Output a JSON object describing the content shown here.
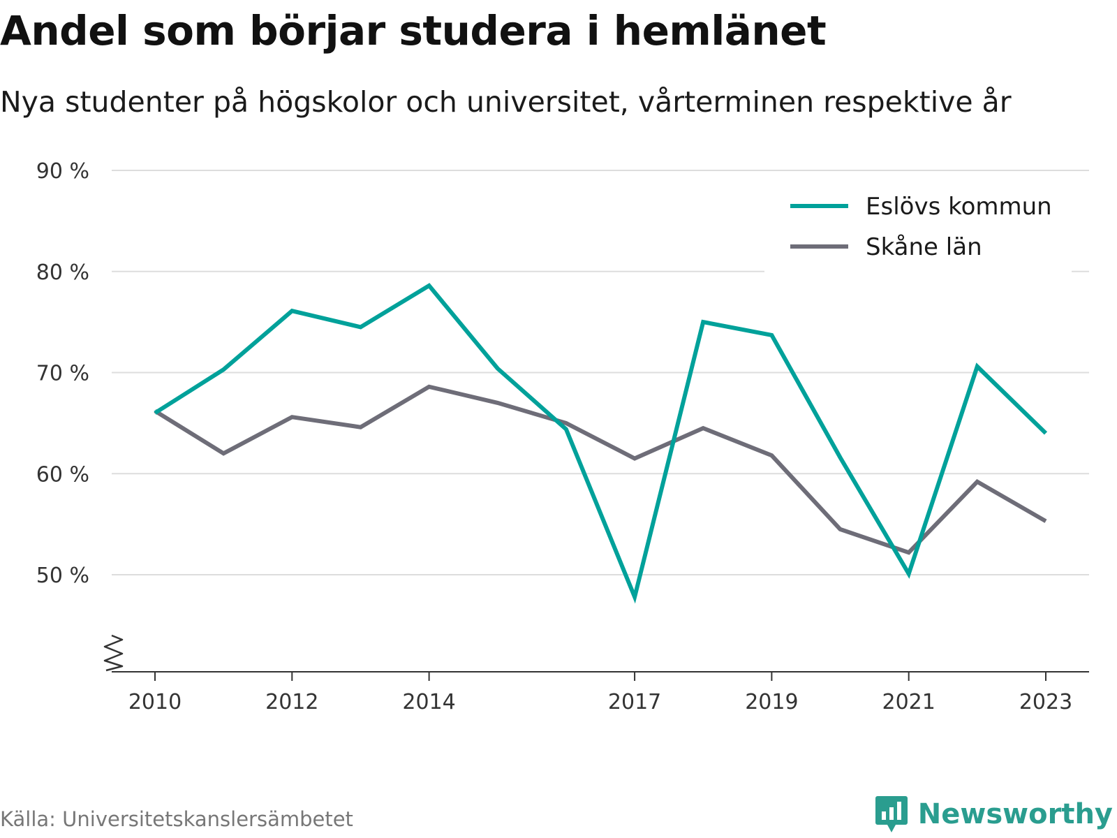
{
  "header": {
    "title": "Andel som börjar studera i hemlänet",
    "subtitle": "Nya studenter på högskolor och universitet, vårterminen respektive år"
  },
  "footer": {
    "source": "Källa: Universitetskanslersämbetet",
    "brand": "Newsworthy",
    "brand_icon": "bar-chart-speech-bubble-icon"
  },
  "colors": {
    "eslov": "#00a19a",
    "skane": "#6e6d78",
    "grid": "#dddddd",
    "axis": "#333333",
    "brand": "#2a9d8f"
  },
  "chart_data": {
    "type": "line",
    "x": [
      2010,
      2011,
      2012,
      2013,
      2014,
      2015,
      2016,
      2017,
      2018,
      2019,
      2020,
      2021,
      2022,
      2023
    ],
    "x_tick_labels": [
      "2010",
      "2012",
      "2014",
      "2017",
      "2019",
      "2021",
      "2023"
    ],
    "y_tick_labels": [
      "90 %",
      "80 %",
      "70 %",
      "60 %",
      "50 %"
    ],
    "y_ticks": [
      90,
      80,
      70,
      60,
      50
    ],
    "ylim": [
      44,
      90
    ],
    "y_axis_break": true,
    "grid": true,
    "legend_position": "top-right",
    "series": [
      {
        "name": "Eslövs kommun",
        "color": "#00a19a",
        "values": [
          66.0,
          70.3,
          76.1,
          74.5,
          78.6,
          70.4,
          64.4,
          47.8,
          75.0,
          73.7,
          61.6,
          50.1,
          70.6,
          64.0
        ]
      },
      {
        "name": "Skåne län",
        "color": "#6e6d78",
        "values": [
          66.2,
          62.0,
          65.6,
          64.6,
          68.6,
          67.0,
          65.0,
          61.5,
          64.5,
          61.8,
          54.5,
          52.2,
          59.2,
          55.3
        ]
      }
    ]
  }
}
